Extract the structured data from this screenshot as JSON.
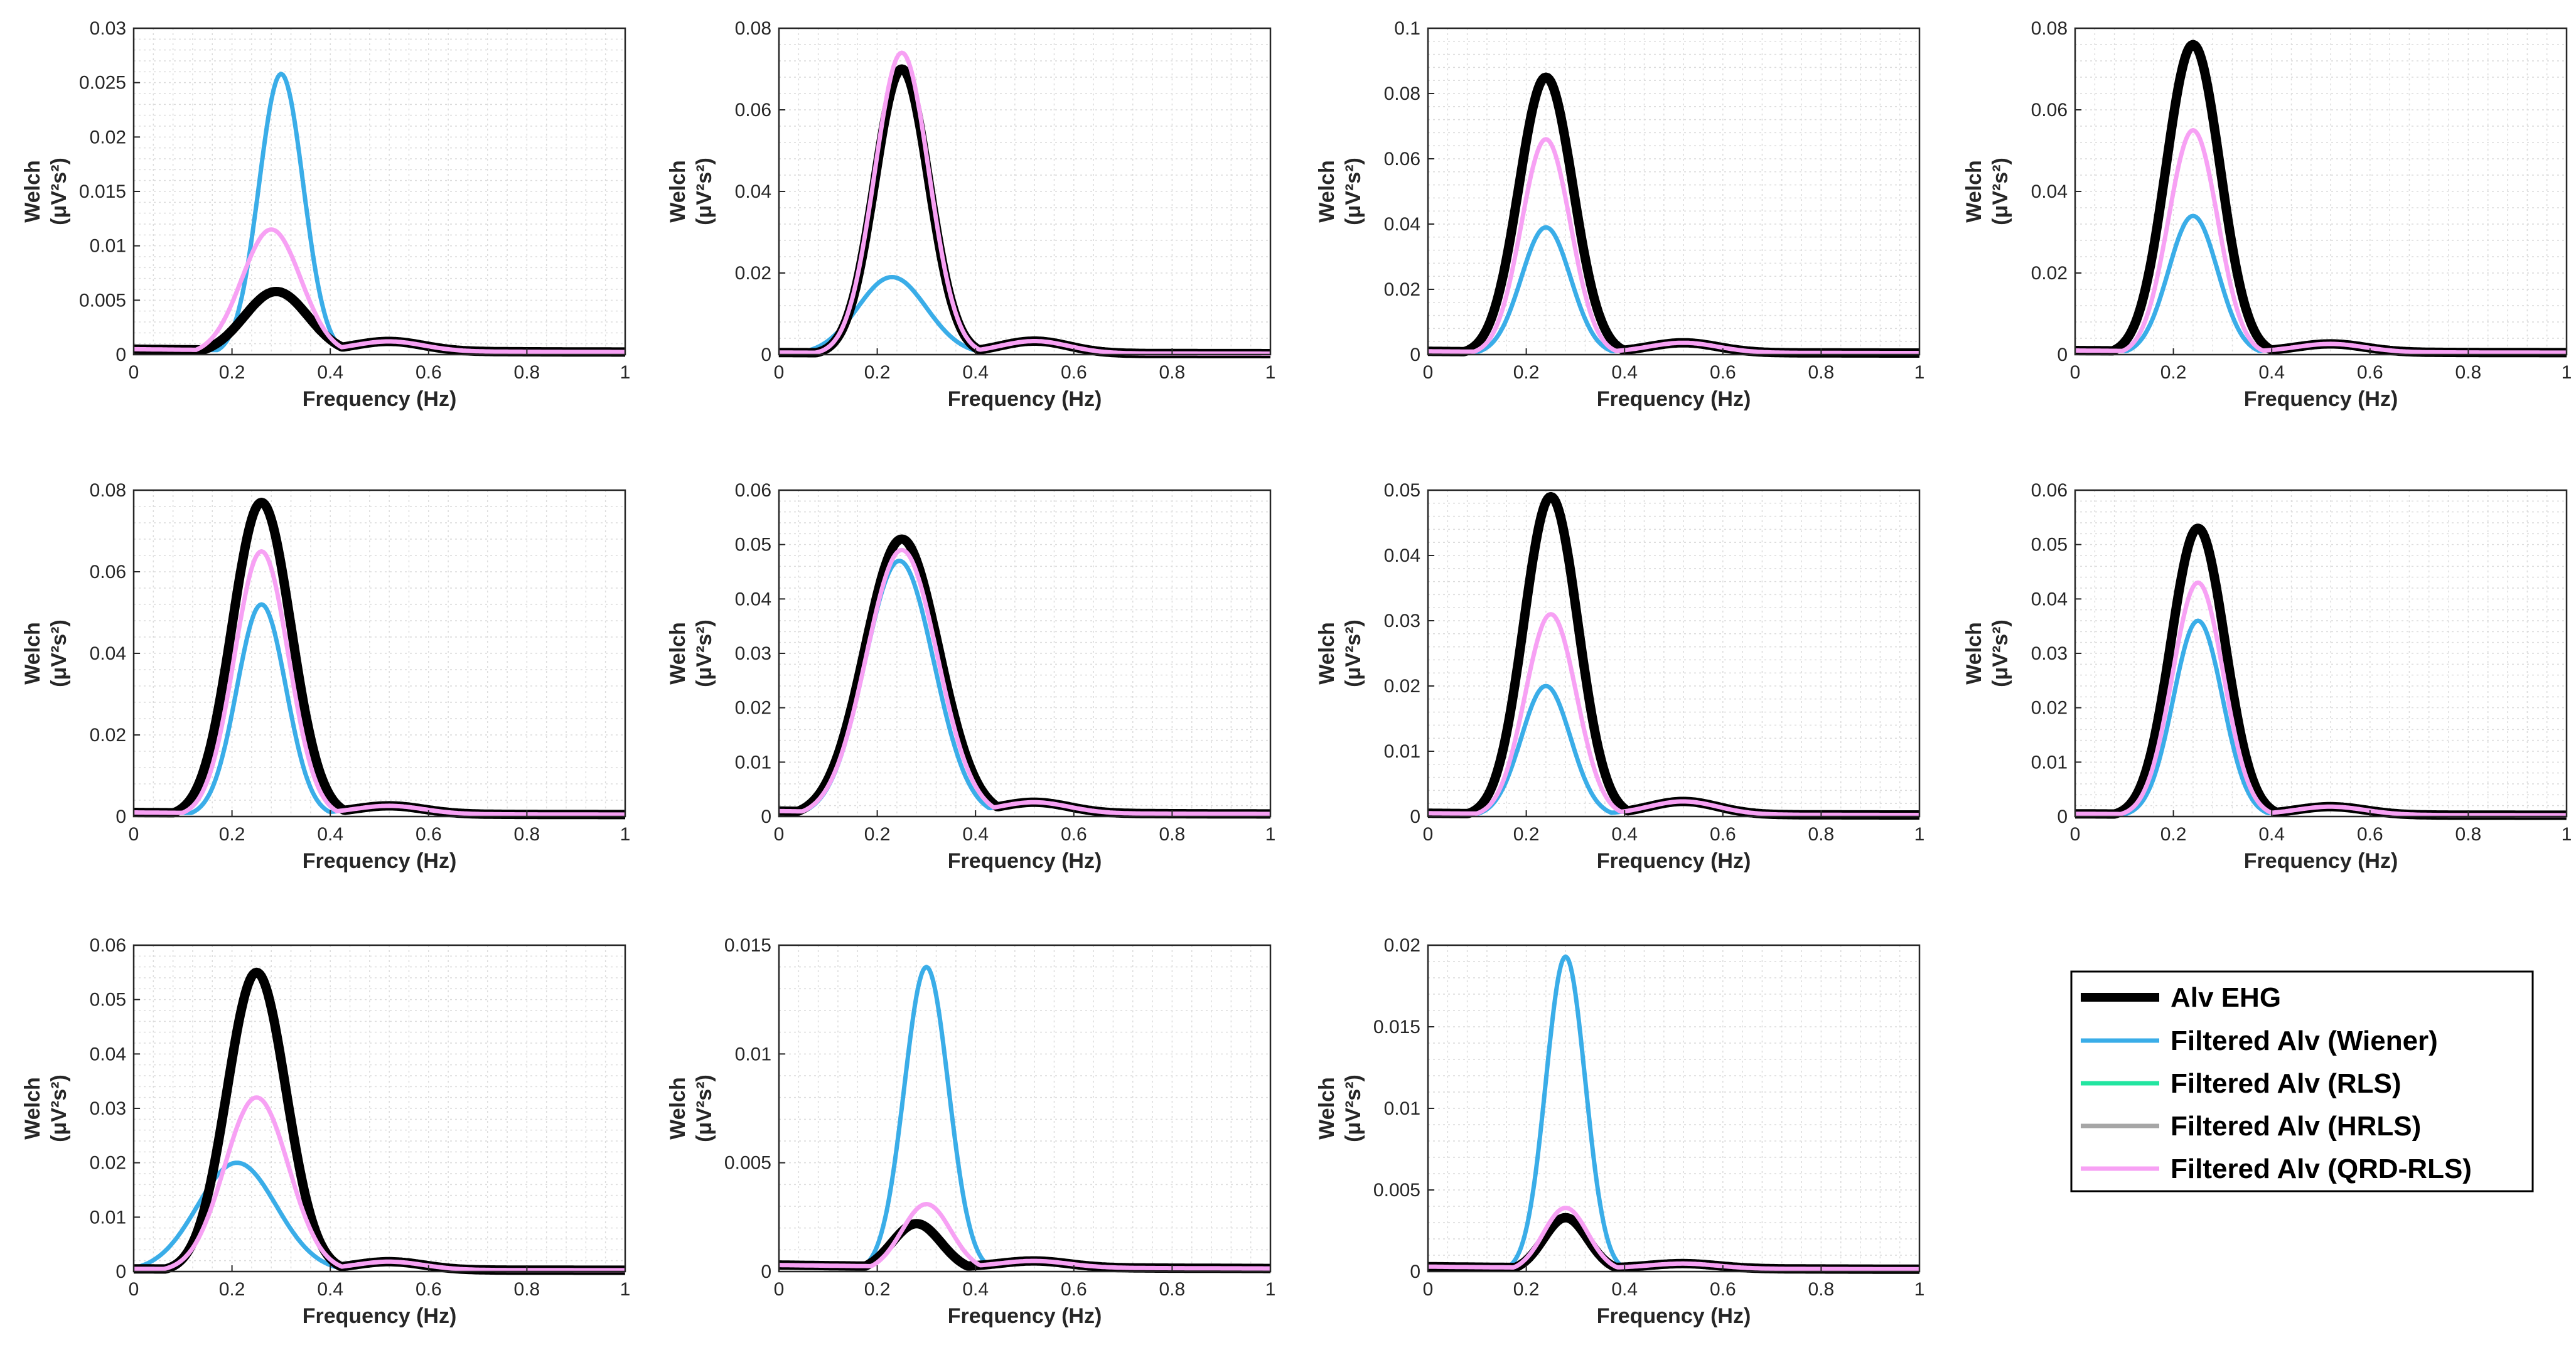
{
  "figure": {
    "colors": {
      "alv": "#000000",
      "wiener": "#3aade8",
      "rls": "#22e5a0",
      "hrls": "#a6a6a6",
      "qrd": "#f7a1f4"
    },
    "legend": {
      "entries": [
        {
          "key": "alv",
          "label": "Alv EHG"
        },
        {
          "key": "wiener",
          "label": "Filtered Alv (Wiener)"
        },
        {
          "key": "rls",
          "label": "Filtered Alv (RLS)"
        },
        {
          "key": "hrls",
          "label": "Filtered Alv (HRLS)"
        },
        {
          "key": "qrd",
          "label": "Filtered Alv (QRD-RLS)"
        }
      ]
    }
  },
  "chart_data": [
    {
      "type": "line",
      "xlabel": "Frequency (Hz)",
      "ylabel": "Welch",
      "ylabel_units": "(μV²s²)",
      "xlim": [
        0,
        1
      ],
      "ylim": [
        0,
        0.03
      ],
      "xticks": [
        "0",
        "0.2",
        "0.4",
        "0.6",
        "0.8",
        "1"
      ],
      "yticks": [
        "0",
        "0.005",
        "0.01",
        "0.015",
        "0.02",
        "0.025",
        "0.03"
      ],
      "series": [
        {
          "name": "Alv EHG",
          "key": "alv",
          "peak_x": 0.29,
          "peak_y": 0.0058,
          "width": 0.065,
          "base": 0.0005,
          "bump_y": 0.0009
        },
        {
          "name": "Filtered Alv (Wiener)",
          "key": "wiener",
          "peak_x": 0.3,
          "peak_y": 0.0258,
          "width": 0.045,
          "base": 0.0005,
          "bump_y": 0.0009
        },
        {
          "name": "Filtered Alv (QRD-RLS)",
          "key": "qrd",
          "peak_x": 0.28,
          "peak_y": 0.0115,
          "width": 0.06,
          "base": 0.0005,
          "bump_y": 0.0009
        }
      ]
    },
    {
      "type": "line",
      "xlabel": "Frequency (Hz)",
      "ylabel": "Welch",
      "ylabel_units": "(μV²s²)",
      "xlim": [
        0,
        1
      ],
      "ylim": [
        0,
        0.08
      ],
      "xticks": [
        "0",
        "0.2",
        "0.4",
        "0.6",
        "0.8",
        "1"
      ],
      "yticks": [
        "0",
        "0.02",
        "0.04",
        "0.06",
        "0.08"
      ],
      "series": [
        {
          "name": "Alv EHG",
          "key": "alv",
          "peak_x": 0.25,
          "peak_y": 0.07,
          "width": 0.055,
          "base": 0.0005,
          "bump_y": 0.003
        },
        {
          "name": "Filtered Alv (Wiener)",
          "key": "wiener",
          "peak_x": 0.23,
          "peak_y": 0.019,
          "width": 0.07,
          "base": 0.0005,
          "bump_y": 0.003
        },
        {
          "name": "Filtered Alv (QRD-RLS)",
          "key": "qrd",
          "peak_x": 0.25,
          "peak_y": 0.074,
          "width": 0.055,
          "base": 0.0005,
          "bump_y": 0.003
        }
      ]
    },
    {
      "type": "line",
      "xlabel": "Frequency (Hz)",
      "ylabel": "Welch",
      "ylabel_units": "(μV²s²)",
      "xlim": [
        0,
        1
      ],
      "ylim": [
        0,
        0.1
      ],
      "xticks": [
        "0",
        "0.2",
        "0.4",
        "0.6",
        "0.8",
        "1"
      ],
      "yticks": [
        "0",
        "0.02",
        "0.04",
        "0.06",
        "0.08",
        "0.1"
      ],
      "series": [
        {
          "name": "Alv EHG",
          "key": "alv",
          "peak_x": 0.24,
          "peak_y": 0.085,
          "width": 0.055,
          "base": 0.001,
          "bump_y": 0.003
        },
        {
          "name": "Filtered Alv (Wiener)",
          "key": "wiener",
          "peak_x": 0.24,
          "peak_y": 0.039,
          "width": 0.05,
          "base": 0.001,
          "bump_y": 0.003
        },
        {
          "name": "Filtered Alv (QRD-RLS)",
          "key": "qrd",
          "peak_x": 0.24,
          "peak_y": 0.066,
          "width": 0.05,
          "base": 0.001,
          "bump_y": 0.003
        }
      ]
    },
    {
      "type": "line",
      "xlabel": "Frequency (Hz)",
      "ylabel": "Welch",
      "ylabel_units": "(μV²s²)",
      "xlim": [
        0,
        1
      ],
      "ylim": [
        0,
        0.08
      ],
      "xticks": [
        "0",
        "0.2",
        "0.4",
        "0.6",
        "0.8",
        "1"
      ],
      "yticks": [
        "0",
        "0.02",
        "0.04",
        "0.06",
        "0.08"
      ],
      "series": [
        {
          "name": "Alv EHG",
          "key": "alv",
          "peak_x": 0.24,
          "peak_y": 0.076,
          "width": 0.055,
          "base": 0.001,
          "bump_y": 0.002
        },
        {
          "name": "Filtered Alv (Wiener)",
          "key": "wiener",
          "peak_x": 0.24,
          "peak_y": 0.034,
          "width": 0.05,
          "base": 0.001,
          "bump_y": 0.002
        },
        {
          "name": "Filtered Alv (QRD-RLS)",
          "key": "qrd",
          "peak_x": 0.24,
          "peak_y": 0.055,
          "width": 0.05,
          "base": 0.001,
          "bump_y": 0.002
        }
      ]
    },
    {
      "type": "line",
      "xlabel": "Frequency (Hz)",
      "ylabel": "Welch",
      "ylabel_units": "(μV²s²)",
      "xlim": [
        0,
        1
      ],
      "ylim": [
        0,
        0.08
      ],
      "xticks": [
        "0",
        "0.2",
        "0.4",
        "0.6",
        "0.8",
        "1"
      ],
      "yticks": [
        "0",
        "0.02",
        "0.04",
        "0.06",
        "0.08"
      ],
      "series": [
        {
          "name": "Alv EHG",
          "key": "alv",
          "peak_x": 0.26,
          "peak_y": 0.077,
          "width": 0.06,
          "base": 0.001,
          "bump_y": 0.002
        },
        {
          "name": "Filtered Alv (Wiener)",
          "key": "wiener",
          "peak_x": 0.26,
          "peak_y": 0.052,
          "width": 0.05,
          "base": 0.001,
          "bump_y": 0.002
        },
        {
          "name": "Filtered Alv (QRD-RLS)",
          "key": "qrd",
          "peak_x": 0.26,
          "peak_y": 0.065,
          "width": 0.055,
          "base": 0.001,
          "bump_y": 0.002
        }
      ]
    },
    {
      "type": "line",
      "xlabel": "Frequency (Hz)",
      "ylabel": "Welch",
      "ylabel_units": "(μV²s²)",
      "xlim": [
        0,
        1
      ],
      "ylim": [
        0,
        0.06
      ],
      "xticks": [
        "0",
        "0.2",
        "0.4",
        "0.6",
        "0.8",
        "1"
      ],
      "yticks": [
        "0",
        "0.01",
        "0.02",
        "0.03",
        "0.04",
        "0.05",
        "0.06"
      ],
      "series": [
        {
          "name": "Alv EHG",
          "key": "alv",
          "peak_x": 0.25,
          "peak_y": 0.051,
          "width": 0.075,
          "base": 0.001,
          "bump_y": 0.002
        },
        {
          "name": "Filtered Alv (Wiener)",
          "key": "wiener",
          "peak_x": 0.245,
          "peak_y": 0.047,
          "width": 0.07,
          "base": 0.001,
          "bump_y": 0.002
        },
        {
          "name": "Filtered Alv (QRD-RLS)",
          "key": "qrd",
          "peak_x": 0.25,
          "peak_y": 0.049,
          "width": 0.072,
          "base": 0.001,
          "bump_y": 0.002
        }
      ]
    },
    {
      "type": "line",
      "xlabel": "Frequency (Hz)",
      "ylabel": "Welch",
      "ylabel_units": "(μV²s²)",
      "xlim": [
        0,
        1
      ],
      "ylim": [
        0,
        0.05
      ],
      "xticks": [
        "0",
        "0.2",
        "0.4",
        "0.6",
        "0.8",
        "1"
      ],
      "yticks": [
        "0",
        "0.01",
        "0.02",
        "0.03",
        "0.04",
        "0.05"
      ],
      "series": [
        {
          "name": "Alv EHG",
          "key": "alv",
          "peak_x": 0.25,
          "peak_y": 0.049,
          "width": 0.055,
          "base": 0.0005,
          "bump_y": 0.002
        },
        {
          "name": "Filtered Alv (Wiener)",
          "key": "wiener",
          "peak_x": 0.24,
          "peak_y": 0.02,
          "width": 0.05,
          "base": 0.0005,
          "bump_y": 0.002
        },
        {
          "name": "Filtered Alv (QRD-RLS)",
          "key": "qrd",
          "peak_x": 0.25,
          "peak_y": 0.031,
          "width": 0.052,
          "base": 0.0005,
          "bump_y": 0.002
        }
      ]
    },
    {
      "type": "line",
      "xlabel": "Frequency (Hz)",
      "ylabel": "Welch",
      "ylabel_units": "(μV²s²)",
      "xlim": [
        0,
        1
      ],
      "ylim": [
        0,
        0.06
      ],
      "xticks": [
        "0",
        "0.2",
        "0.4",
        "0.6",
        "0.8",
        "1"
      ],
      "yticks": [
        "0",
        "0.01",
        "0.02",
        "0.03",
        "0.04",
        "0.05",
        "0.06"
      ],
      "series": [
        {
          "name": "Alv EHG",
          "key": "alv",
          "peak_x": 0.25,
          "peak_y": 0.053,
          "width": 0.055,
          "base": 0.0005,
          "bump_y": 0.0015
        },
        {
          "name": "Filtered Alv (Wiener)",
          "key": "wiener",
          "peak_x": 0.25,
          "peak_y": 0.036,
          "width": 0.05,
          "base": 0.0005,
          "bump_y": 0.0015
        },
        {
          "name": "Filtered Alv (QRD-RLS)",
          "key": "qrd",
          "peak_x": 0.25,
          "peak_y": 0.043,
          "width": 0.052,
          "base": 0.0005,
          "bump_y": 0.0015
        }
      ]
    },
    {
      "type": "line",
      "xlabel": "Frequency (Hz)",
      "ylabel": "Welch",
      "ylabel_units": "(μV²s²)",
      "xlim": [
        0,
        1
      ],
      "ylim": [
        0,
        0.06
      ],
      "xticks": [
        "0",
        "0.2",
        "0.4",
        "0.6",
        "0.8",
        "1"
      ],
      "yticks": [
        "0",
        "0.01",
        "0.02",
        "0.03",
        "0.04",
        "0.05",
        "0.06"
      ],
      "series": [
        {
          "name": "Alv EHG",
          "key": "alv",
          "peak_x": 0.25,
          "peak_y": 0.055,
          "width": 0.06,
          "base": 0.0005,
          "bump_y": 0.0015
        },
        {
          "name": "Filtered Alv (Wiener)",
          "key": "wiener",
          "peak_x": 0.21,
          "peak_y": 0.02,
          "width": 0.08,
          "base": 0.0005,
          "bump_y": 0.0015
        },
        {
          "name": "Filtered Alv (QRD-RLS)",
          "key": "qrd",
          "peak_x": 0.25,
          "peak_y": 0.032,
          "width": 0.065,
          "base": 0.0005,
          "bump_y": 0.0015
        }
      ]
    },
    {
      "type": "line",
      "xlabel": "Frequency (Hz)",
      "ylabel": "Welch",
      "ylabel_units": "(μV²s²)",
      "xlim": [
        0,
        1
      ],
      "ylim": [
        0,
        0.015
      ],
      "xticks": [
        "0",
        "0.2",
        "0.4",
        "0.6",
        "0.8",
        "1"
      ],
      "yticks": [
        "0",
        "0.005",
        "0.01",
        "0.015"
      ],
      "series": [
        {
          "name": "Alv EHG",
          "key": "alv",
          "peak_x": 0.28,
          "peak_y": 0.0022,
          "width": 0.05,
          "base": 0.0003,
          "bump_y": 0.0003
        },
        {
          "name": "Filtered Alv (Wiener)",
          "key": "wiener",
          "peak_x": 0.3,
          "peak_y": 0.014,
          "width": 0.045,
          "base": 0.0003,
          "bump_y": 0.0003
        },
        {
          "name": "Filtered Alv (QRD-RLS)",
          "key": "qrd",
          "peak_x": 0.3,
          "peak_y": 0.0031,
          "width": 0.05,
          "base": 0.0003,
          "bump_y": 0.0003
        }
      ]
    },
    {
      "type": "line",
      "xlabel": "Frequency (Hz)",
      "ylabel": "Welch",
      "ylabel_units": "(μV²s²)",
      "xlim": [
        0,
        1
      ],
      "ylim": [
        0,
        0.02
      ],
      "xticks": [
        "0",
        "0.2",
        "0.4",
        "0.6",
        "0.8",
        "1"
      ],
      "yticks": [
        "0",
        "0.005",
        "0.01",
        "0.015",
        "0.02"
      ],
      "series": [
        {
          "name": "Alv EHG",
          "key": "alv",
          "peak_x": 0.28,
          "peak_y": 0.0033,
          "width": 0.045,
          "base": 0.0003,
          "bump_y": 0.0003
        },
        {
          "name": "Filtered Alv (Wiener)",
          "key": "wiener",
          "peak_x": 0.28,
          "peak_y": 0.0193,
          "width": 0.04,
          "base": 0.0003,
          "bump_y": 0.0003
        },
        {
          "name": "Filtered Alv (QRD-RLS)",
          "key": "qrd",
          "peak_x": 0.28,
          "peak_y": 0.0039,
          "width": 0.045,
          "base": 0.0003,
          "bump_y": 0.0003
        }
      ]
    }
  ]
}
